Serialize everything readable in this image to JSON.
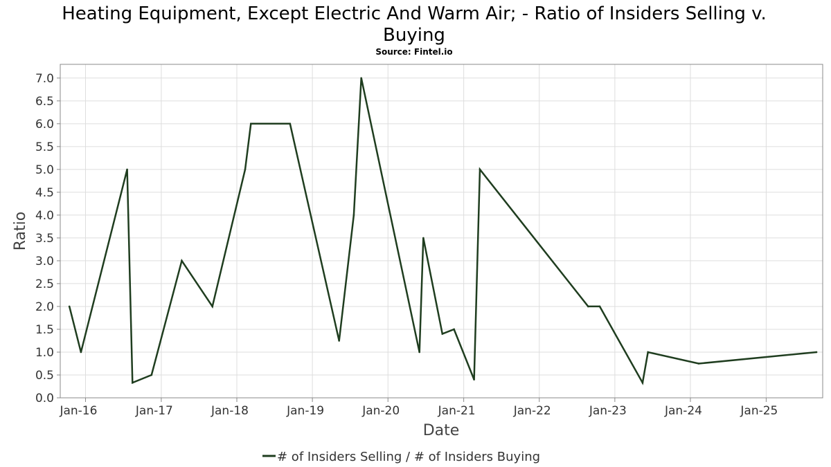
{
  "chart_data": {
    "type": "line",
    "title_line1": "Heating Equipment, Except Electric And Warm Air; - Ratio of Insiders Selling v.",
    "title_line2": "Buying",
    "subtitle": "Source: Fintel.io",
    "xlabel": "Date",
    "ylabel": "Ratio",
    "ylim": [
      0,
      7.3
    ],
    "xlim": [
      "2015-09-01",
      "2025-10-01"
    ],
    "grid": true,
    "legend_position": "bottom-center",
    "y_ticks": [
      "0.0",
      "0.5",
      "1.0",
      "1.5",
      "2.0",
      "2.5",
      "3.0",
      "3.5",
      "4.0",
      "4.5",
      "5.0",
      "5.5",
      "6.0",
      "6.5",
      "7.0"
    ],
    "x_ticks": [
      {
        "label": "Jan-16",
        "date": "2016-01-01"
      },
      {
        "label": "Jan-17",
        "date": "2017-01-01"
      },
      {
        "label": "Jan-18",
        "date": "2018-01-01"
      },
      {
        "label": "Jan-19",
        "date": "2019-01-01"
      },
      {
        "label": "Jan-20",
        "date": "2020-01-01"
      },
      {
        "label": "Jan-21",
        "date": "2021-01-01"
      },
      {
        "label": "Jan-22",
        "date": "2022-01-01"
      },
      {
        "label": "Jan-23",
        "date": "2023-01-01"
      },
      {
        "label": "Jan-24",
        "date": "2024-01-01"
      },
      {
        "label": "Jan-25",
        "date": "2025-01-01"
      }
    ],
    "series": [
      {
        "name": "# of Insiders Selling / # of Insiders Buying",
        "color": "#1f3d1f",
        "points": [
          {
            "x": "2015-10-15",
            "y": 2.0
          },
          {
            "x": "2015-12-10",
            "y": 1.0
          },
          {
            "x": "2016-07-20",
            "y": 5.0
          },
          {
            "x": "2016-08-15",
            "y": 0.33
          },
          {
            "x": "2016-11-15",
            "y": 0.5
          },
          {
            "x": "2017-04-10",
            "y": 3.0
          },
          {
            "x": "2017-09-05",
            "y": 2.0
          },
          {
            "x": "2018-02-10",
            "y": 5.0
          },
          {
            "x": "2018-03-10",
            "y": 6.0
          },
          {
            "x": "2018-09-15",
            "y": 6.0
          },
          {
            "x": "2019-05-10",
            "y": 1.25
          },
          {
            "x": "2019-07-20",
            "y": 4.0
          },
          {
            "x": "2019-08-25",
            "y": 7.0
          },
          {
            "x": "2020-06-01",
            "y": 1.0
          },
          {
            "x": "2020-06-20",
            "y": 3.5
          },
          {
            "x": "2020-09-20",
            "y": 1.4
          },
          {
            "x": "2020-11-15",
            "y": 1.5
          },
          {
            "x": "2021-02-20",
            "y": 0.4
          },
          {
            "x": "2021-03-20",
            "y": 5.0
          },
          {
            "x": "2022-08-25",
            "y": 2.0
          },
          {
            "x": "2022-10-20",
            "y": 2.0
          },
          {
            "x": "2023-05-15",
            "y": 0.33
          },
          {
            "x": "2023-06-10",
            "y": 1.0
          },
          {
            "x": "2024-02-10",
            "y": 0.75
          },
          {
            "x": "2025-09-01",
            "y": 1.0
          }
        ]
      }
    ]
  }
}
